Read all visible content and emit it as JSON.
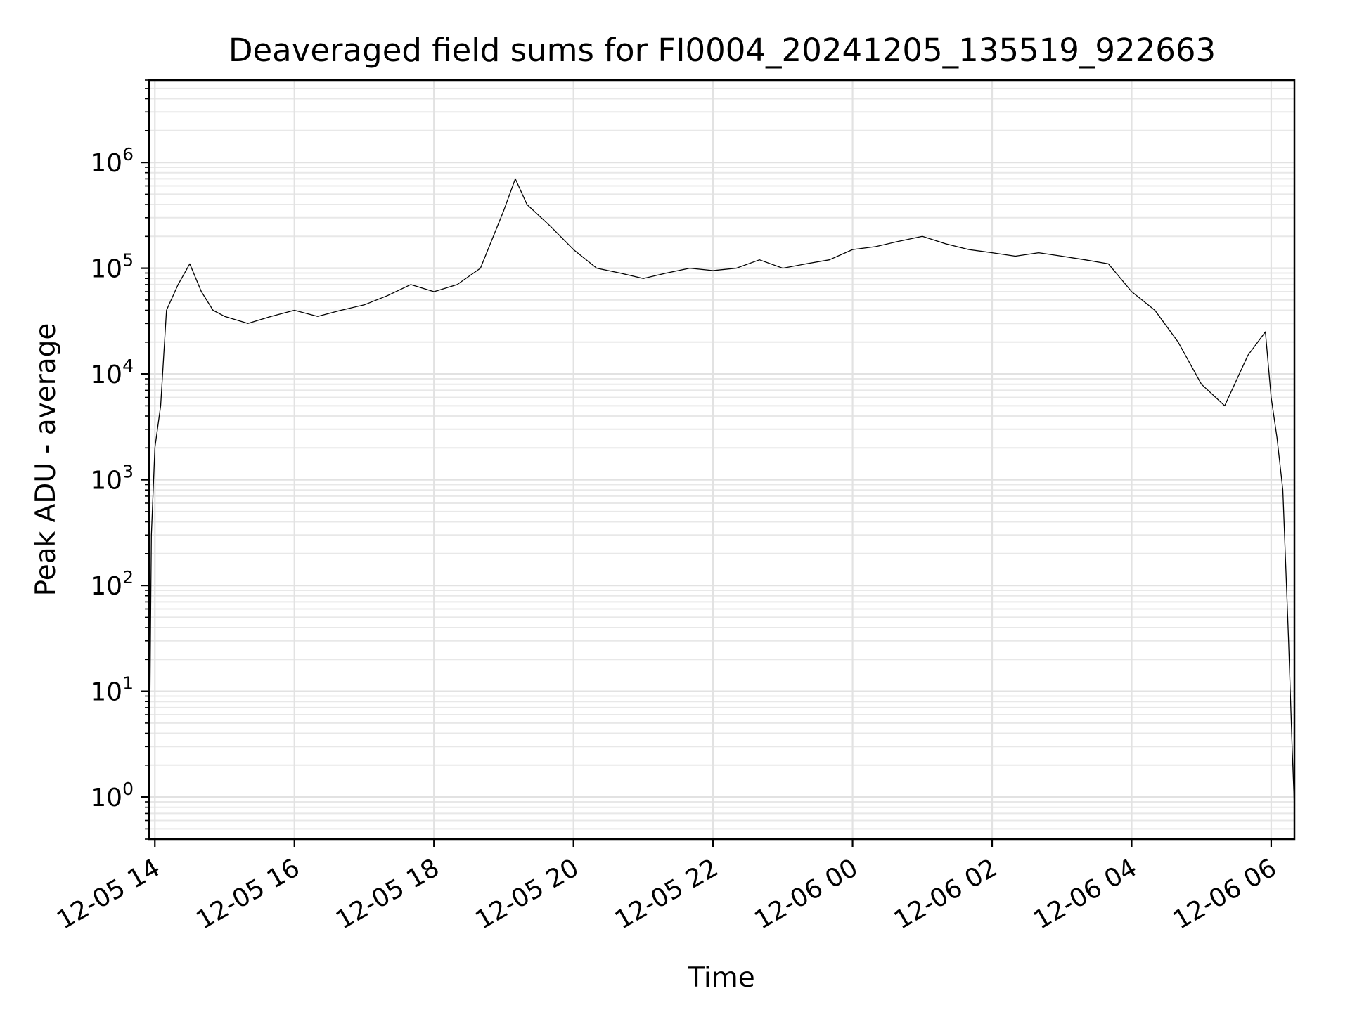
{
  "chart_data": {
    "type": "line",
    "title": "Deaveraged field sums for FI0004_20241205_135519_922663",
    "xlabel": "Time",
    "ylabel": "Peak ADU - average",
    "yscale": "log",
    "ylim": [
      0.4,
      6000000
    ],
    "xlim": [
      "2024-12-05 13:55",
      "2024-12-06 06:20"
    ],
    "grid": true,
    "grid_minor": true,
    "line_color": "#000000",
    "x_ticks": [
      {
        "value": "2024-12-05 14:00",
        "label": "12-05 14"
      },
      {
        "value": "2024-12-05 16:00",
        "label": "12-05 16"
      },
      {
        "value": "2024-12-05 18:00",
        "label": "12-05 18"
      },
      {
        "value": "2024-12-05 20:00",
        "label": "12-05 20"
      },
      {
        "value": "2024-12-05 22:00",
        "label": "12-05 22"
      },
      {
        "value": "2024-12-06 00:00",
        "label": "12-06 00"
      },
      {
        "value": "2024-12-06 02:00",
        "label": "12-06 02"
      },
      {
        "value": "2024-12-06 04:00",
        "label": "12-06 04"
      },
      {
        "value": "2024-12-06 06:00",
        "label": "12-06 06"
      }
    ],
    "y_ticks": [
      {
        "value": 1,
        "base": "10",
        "exp": "0"
      },
      {
        "value": 10,
        "base": "10",
        "exp": "1"
      },
      {
        "value": 100,
        "base": "10",
        "exp": "2"
      },
      {
        "value": 1000,
        "base": "10",
        "exp": "3"
      },
      {
        "value": 10000,
        "base": "10",
        "exp": "4"
      },
      {
        "value": 100000,
        "base": "10",
        "exp": "5"
      },
      {
        "value": 1000000,
        "base": "10",
        "exp": "6"
      }
    ],
    "series": [
      {
        "x": [
          "2024-12-05 13:55",
          "2024-12-05 13:57",
          "2024-12-05 14:00",
          "2024-12-05 14:05",
          "2024-12-05 14:10",
          "2024-12-05 14:20",
          "2024-12-05 14:30",
          "2024-12-05 14:40",
          "2024-12-05 14:50",
          "2024-12-05 15:00",
          "2024-12-05 15:20",
          "2024-12-05 15:40",
          "2024-12-05 16:00",
          "2024-12-05 16:20",
          "2024-12-05 16:40",
          "2024-12-05 17:00",
          "2024-12-05 17:20",
          "2024-12-05 17:40",
          "2024-12-05 18:00",
          "2024-12-05 18:20",
          "2024-12-05 18:40",
          "2024-12-05 19:00",
          "2024-12-05 19:10",
          "2024-12-05 19:20",
          "2024-12-05 19:40",
          "2024-12-05 20:00",
          "2024-12-05 20:20",
          "2024-12-05 20:40",
          "2024-12-05 21:00",
          "2024-12-05 21:20",
          "2024-12-05 21:40",
          "2024-12-05 22:00",
          "2024-12-05 22:20",
          "2024-12-05 22:40",
          "2024-12-05 23:00",
          "2024-12-05 23:20",
          "2024-12-05 23:40",
          "2024-12-06 00:00",
          "2024-12-06 00:20",
          "2024-12-06 00:40",
          "2024-12-06 01:00",
          "2024-12-06 01:20",
          "2024-12-06 01:40",
          "2024-12-06 02:00",
          "2024-12-06 02:20",
          "2024-12-06 02:40",
          "2024-12-06 03:00",
          "2024-12-06 03:20",
          "2024-12-06 03:40",
          "2024-12-06 04:00",
          "2024-12-06 04:20",
          "2024-12-06 04:40",
          "2024-12-06 05:00",
          "2024-12-06 05:20",
          "2024-12-06 05:40",
          "2024-12-06 05:55",
          "2024-12-06 06:00",
          "2024-12-06 06:05",
          "2024-12-06 06:10",
          "2024-12-06 06:15",
          "2024-12-06 06:18",
          "2024-12-06 06:20"
        ],
        "y": [
          1,
          300,
          2000,
          5000,
          40000,
          70000,
          110000,
          60000,
          40000,
          35000,
          30000,
          35000,
          40000,
          35000,
          40000,
          45000,
          55000,
          70000,
          60000,
          70000,
          100000,
          350000,
          700000,
          400000,
          250000,
          150000,
          100000,
          90000,
          80000,
          90000,
          100000,
          95000,
          100000,
          120000,
          100000,
          110000,
          120000,
          150000,
          160000,
          180000,
          200000,
          170000,
          150000,
          140000,
          130000,
          140000,
          130000,
          120000,
          110000,
          60000,
          40000,
          20000,
          8000,
          5000,
          15000,
          25000,
          6000,
          2500,
          800,
          30,
          3,
          0.8
        ]
      }
    ]
  }
}
